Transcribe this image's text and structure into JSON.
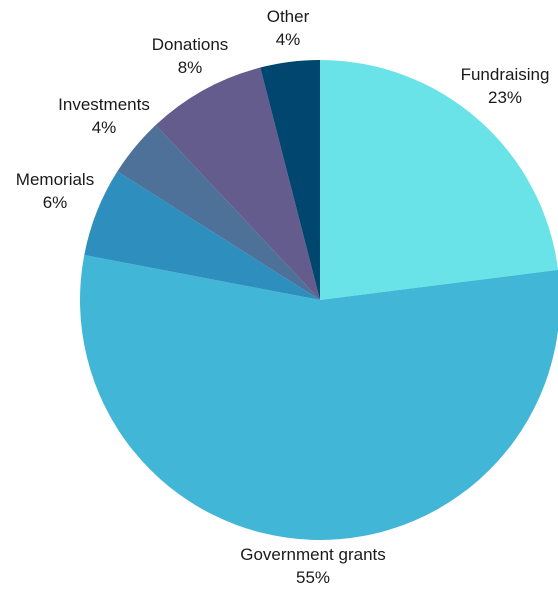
{
  "chart_data": {
    "type": "pie",
    "start_angle_deg": 0,
    "direction": "clockwise",
    "slices": [
      {
        "label": "Fundraising",
        "value": 23,
        "value_label": "23%",
        "color": "#6ae3e8"
      },
      {
        "label": "Government grants",
        "value": 55,
        "value_label": "55%",
        "color": "#41b6d6"
      },
      {
        "label": "Memorials",
        "value": 6,
        "value_label": "6%",
        "color": "#2e8fbf"
      },
      {
        "label": "Investments",
        "value": 4,
        "value_label": "4%",
        "color": "#4d7199"
      },
      {
        "label": "Donations",
        "value": 8,
        "value_label": "8%",
        "color": "#655c8e"
      },
      {
        "label": "Other",
        "value": 4,
        "value_label": "4%",
        "color": "#00466e"
      }
    ]
  }
}
